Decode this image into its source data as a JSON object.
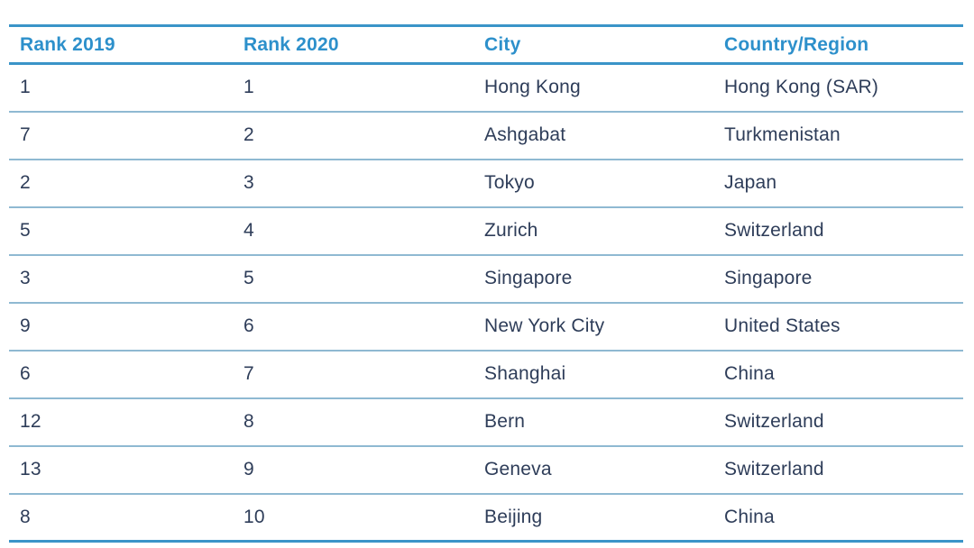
{
  "table": {
    "columns": [
      {
        "key": "rank2019",
        "label": "Rank 2019"
      },
      {
        "key": "rank2020",
        "label": "Rank 2020"
      },
      {
        "key": "city",
        "label": "City"
      },
      {
        "key": "country",
        "label": "Country/Region"
      }
    ],
    "rows": [
      {
        "rank2019": "1",
        "rank2020": "1",
        "city": "Hong Kong",
        "country": "Hong Kong (SAR)"
      },
      {
        "rank2019": "7",
        "rank2020": "2",
        "city": "Ashgabat",
        "country": "Turkmenistan"
      },
      {
        "rank2019": "2",
        "rank2020": "3",
        "city": "Tokyo",
        "country": "Japan"
      },
      {
        "rank2019": "5",
        "rank2020": "4",
        "city": "Zurich",
        "country": "Switzerland"
      },
      {
        "rank2019": "3",
        "rank2020": "5",
        "city": "Singapore",
        "country": "Singapore"
      },
      {
        "rank2019": "9",
        "rank2020": "6",
        "city": "New York City",
        "country": "United States"
      },
      {
        "rank2019": "6",
        "rank2020": "7",
        "city": "Shanghai",
        "country": "China"
      },
      {
        "rank2019": "12",
        "rank2020": "8",
        "city": "Bern",
        "country": "Switzerland"
      },
      {
        "rank2019": "13",
        "rank2020": "9",
        "city": "Geneva",
        "country": "Switzerland"
      },
      {
        "rank2019": "8",
        "rank2020": "10",
        "city": "Beijing",
        "country": "China"
      }
    ]
  },
  "colors": {
    "accent_line": "#3A94C8",
    "header_text": "#2D90CB",
    "row_separator": "#8FB9D2",
    "body_text": "#2E3D59",
    "background": "#FFFFFF"
  }
}
